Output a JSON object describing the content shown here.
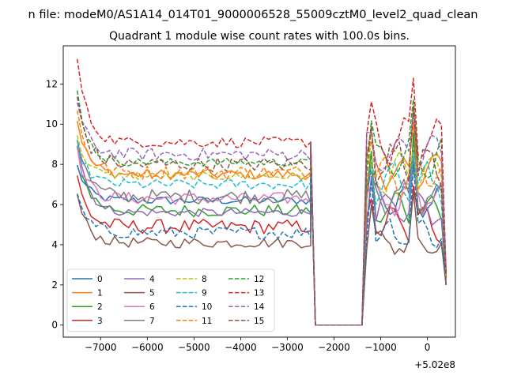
{
  "chart_data": {
    "type": "line",
    "suptitle": "n file: modeM0/AS1A14_014T01_9000006528_55009cztM0_level2_quad_clean",
    "title": "Quadrant 1 module wise count rates with 100.0s bins.",
    "xlabel": "",
    "ylabel": "",
    "offset_label": "+5.02e8",
    "xlim": [
      -7800,
      600
    ],
    "ylim": [
      -0.6,
      13.9
    ],
    "xticks": [
      -7000,
      -6000,
      -5000,
      -4000,
      -3000,
      -2000,
      -1000,
      0
    ],
    "xtick_labels": [
      "−7000",
      "−6000",
      "−5000",
      "−4000",
      "−3000",
      "−2000",
      "−1000",
      "0"
    ],
    "yticks": [
      0,
      2,
      4,
      6,
      8,
      10,
      12
    ],
    "ytick_labels": [
      "0",
      "2",
      "4",
      "6",
      "8",
      "10",
      "12"
    ],
    "grid": false,
    "legend_position": "lower-left",
    "legend_columns": 4,
    "segments": {
      "start": -7500,
      "step": 100,
      "gap_start": -2400,
      "gap_end": -1400,
      "burst_start": -1300,
      "end": 400
    },
    "series": [
      {
        "name": "0",
        "color": "#1f77b4",
        "style": "solid",
        "base": 6.2,
        "initial": 7.9,
        "final": 6.3,
        "peak": 8.5
      },
      {
        "name": "1",
        "color": "#ff7f0e",
        "style": "solid",
        "base": 7.5,
        "initial": 10.2,
        "final": 7.6,
        "peak": 9.6
      },
      {
        "name": "2",
        "color": "#2ca02c",
        "style": "solid",
        "base": 5.7,
        "initial": 8.8,
        "final": 5.8,
        "peak": 9.1
      },
      {
        "name": "3",
        "color": "#d62728",
        "style": "solid",
        "base": 4.9,
        "initial": 7.3,
        "final": 5.0,
        "peak": 6.6
      },
      {
        "name": "4",
        "color": "#9467bd",
        "style": "solid",
        "base": 5.6,
        "initial": 9.3,
        "final": 5.7,
        "peak": 7.8
      },
      {
        "name": "5",
        "color": "#8c564b",
        "style": "solid",
        "base": 4.1,
        "initial": 6.4,
        "final": 4.1,
        "peak": 6.3
      },
      {
        "name": "6",
        "color": "#e377c2",
        "style": "solid",
        "base": 6.3,
        "initial": 8.6,
        "final": 6.4,
        "peak": 7.4
      },
      {
        "name": "7",
        "color": "#7f7f7f",
        "style": "solid",
        "base": 6.4,
        "initial": 9.4,
        "final": 6.4,
        "peak": 8.0
      },
      {
        "name": "8",
        "color": "#bcbd22",
        "style": "dashed",
        "base": 7.4,
        "initial": 9.3,
        "final": 7.5,
        "peak": 8.4
      },
      {
        "name": "9",
        "color": "#17becf",
        "style": "dashed",
        "base": 7.0,
        "initial": 9.0,
        "final": 7.1,
        "peak": 8.2
      },
      {
        "name": "10",
        "color": "#1f77b4",
        "style": "dashed",
        "base": 4.6,
        "initial": 6.3,
        "final": 4.6,
        "peak": 7.6
      },
      {
        "name": "11",
        "color": "#ff7f0e",
        "style": "dashed",
        "base": 7.6,
        "initial": 10.6,
        "final": 7.6,
        "peak": 10.4
      },
      {
        "name": "12",
        "color": "#2ca02c",
        "style": "dashed",
        "base": 8.1,
        "initial": 11.6,
        "final": 8.2,
        "peak": 10.7
      },
      {
        "name": "13",
        "color": "#d62728",
        "style": "dashed",
        "base": 9.1,
        "initial": 13.2,
        "final": 9.2,
        "peak": 11.7
      },
      {
        "name": "14",
        "color": "#9467bd",
        "style": "dashed",
        "base": 8.5,
        "initial": 11.0,
        "final": 8.5,
        "peak": 10.1
      },
      {
        "name": "15",
        "color": "#8c564b",
        "style": "dashed",
        "base": 8.0,
        "initial": 11.3,
        "final": 8.1,
        "peak": 10.4
      }
    ]
  }
}
